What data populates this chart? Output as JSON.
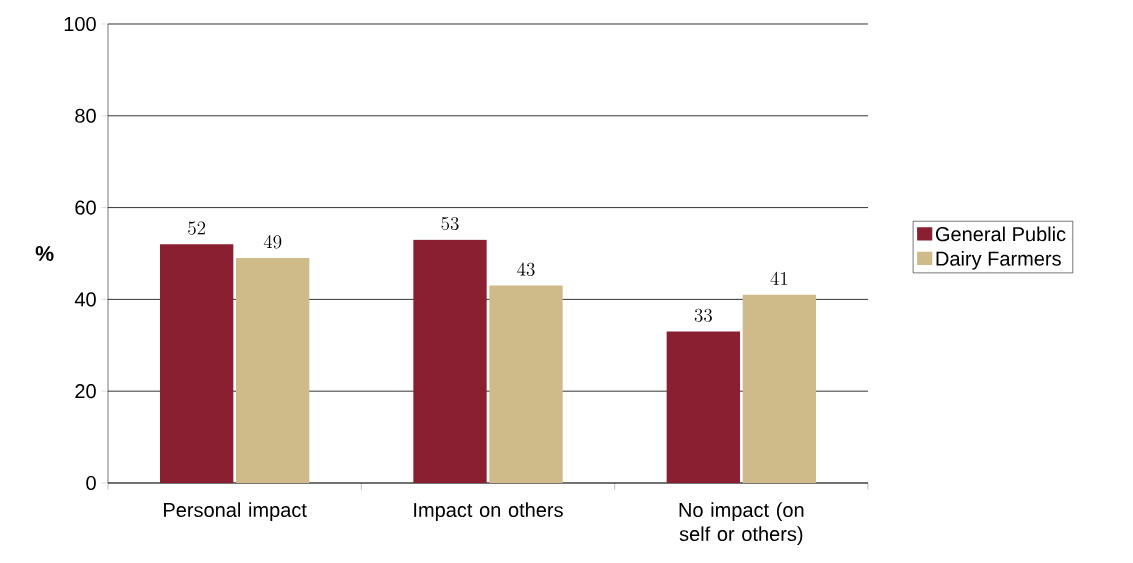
{
  "chart_data": {
    "type": "bar",
    "ylabel": "%",
    "categories": [
      "Personal impact",
      "Impact on others",
      "No impact (on self or others)"
    ],
    "series": [
      {
        "name": "General Public",
        "color": "#8b1f32",
        "values": [
          52,
          53,
          33
        ]
      },
      {
        "name": "Dairy Farmers",
        "color": "#cfbb8a",
        "values": [
          49,
          43,
          41
        ]
      }
    ],
    "ylim": [
      0,
      100
    ],
    "yticks": [
      0,
      20,
      40,
      60,
      80,
      100
    ],
    "grid": "y",
    "legend": "right",
    "data_labels": true
  }
}
